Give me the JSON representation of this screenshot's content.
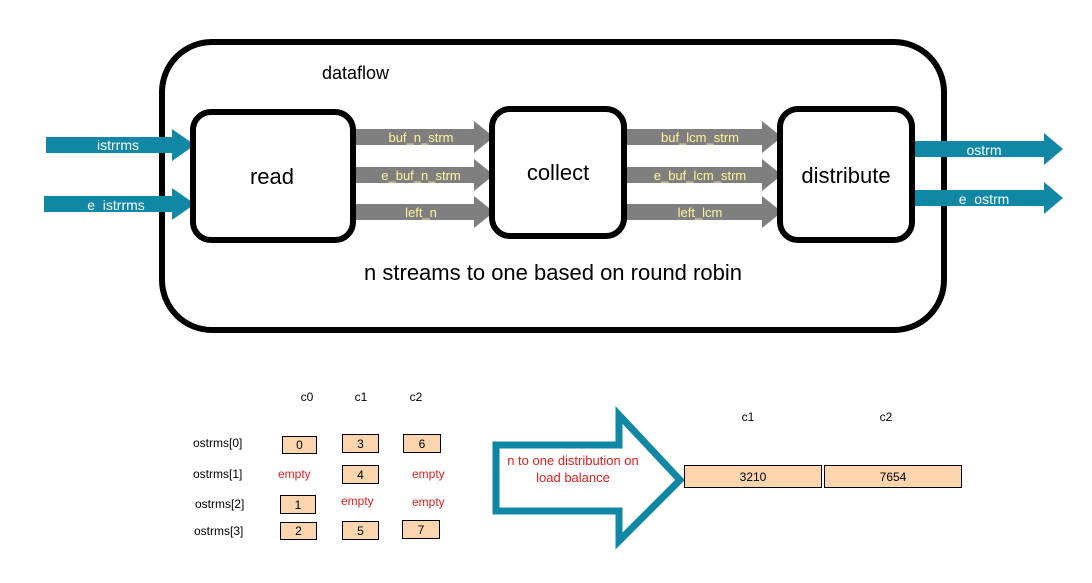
{
  "dataflow_label": "dataflow",
  "subtitle": "n streams to one  based on round robin",
  "blocks": {
    "read": "read",
    "collect": "collect",
    "distribute": "distribute"
  },
  "inputs": [
    "istrrms",
    "e_istrrms"
  ],
  "outputs": [
    "ostrm",
    "e_ostrm"
  ],
  "read_to_collect": [
    "buf_n_strm",
    "e_buf_n_strm",
    "left_n"
  ],
  "collect_to_distribute": [
    "buf_lcm_strm",
    "e_buf_lcm_strm",
    "left_lcm"
  ],
  "table": {
    "columns": [
      "c0",
      "c1",
      "c2"
    ],
    "rows": [
      {
        "label": "ostrms[0]",
        "cells": [
          "0",
          "3",
          "6"
        ]
      },
      {
        "label": "ostrms[1]",
        "cells": [
          "empty",
          "4",
          "empty"
        ]
      },
      {
        "label": "ostrms[2]",
        "cells": [
          "1",
          "empty",
          "empty"
        ]
      },
      {
        "label": "ostrms[3]",
        "cells": [
          "2",
          "5",
          "7"
        ]
      }
    ]
  },
  "big_arrow_label": "n to one distribution on load balance",
  "result": {
    "columns": [
      "c1",
      "c2"
    ],
    "values": [
      "3210",
      "7654"
    ]
  },
  "colors": {
    "teal_arrow": "#1187a6",
    "gray_arrow": "#7f7f7f",
    "cell_fill": "#fbd5ad",
    "empty_text": "#e02020",
    "yellow_text": "#fff59d"
  }
}
